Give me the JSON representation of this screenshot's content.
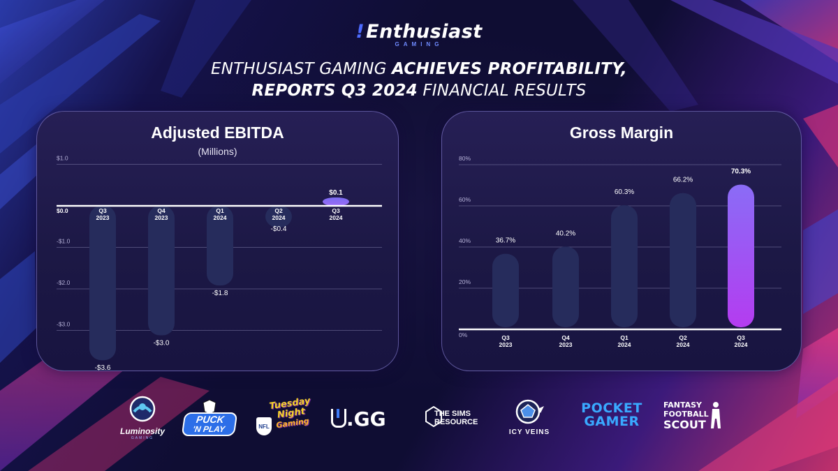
{
  "header": {
    "logo_text": "Enthusiast",
    "logo_sub": "GAMING",
    "headline_line1_a": "ENTHUSIAST GAMING ",
    "headline_line1_b": "ACHIEVES PROFITABILITY,",
    "headline_line2_a": "REPORTS Q3 2024",
    "headline_line2_b": " FINANCIAL RESULTS"
  },
  "chart_data": [
    {
      "type": "bar",
      "title": "Adjusted EBITDA",
      "subtitle": "(Millions)",
      "categories": [
        [
          "Q3",
          "2023"
        ],
        [
          "Q4",
          "2023"
        ],
        [
          "Q1",
          "2024"
        ],
        [
          "Q2",
          "2024"
        ],
        [
          "Q3",
          "2024"
        ]
      ],
      "values": [
        -3.6,
        -3.0,
        -1.8,
        -0.4,
        0.1
      ],
      "value_labels": [
        "-$3.6",
        "-$3.0",
        "-$1.8",
        "-$0.4",
        "$0.1"
      ],
      "y_ticks": [
        1.0,
        0.0,
        -1.0,
        -2.0,
        -3.0
      ],
      "y_tick_labels": [
        "$1.0",
        "$0.0",
        "-$1.0",
        "-$2.0",
        "-$3.0"
      ],
      "ylim": [
        -3.6,
        1.0
      ],
      "grid": true,
      "highlight_index": 4,
      "colors": {
        "bar": "#262c5c",
        "highlight": "#7b6cf2",
        "zero_line": "#ffffff",
        "grid": "#8f8cb8"
      }
    },
    {
      "type": "bar",
      "title": "Gross Margin",
      "categories": [
        [
          "Q3",
          "2023"
        ],
        [
          "Q4",
          "2023"
        ],
        [
          "Q1",
          "2024"
        ],
        [
          "Q2",
          "2024"
        ],
        [
          "Q3",
          "2024"
        ]
      ],
      "values": [
        36.7,
        40.2,
        60.3,
        66.2,
        70.3
      ],
      "value_labels": [
        "36.7%",
        "40.2%",
        "60.3%",
        "66.2%",
        "70.3%"
      ],
      "y_ticks": [
        80,
        60,
        40,
        20,
        0
      ],
      "y_tick_labels": [
        "80%",
        "60%",
        "40%",
        "20%",
        "0%"
      ],
      "ylim": [
        0,
        80
      ],
      "grid": true,
      "highlight_index": 4,
      "colors": {
        "bar": "#262c5c",
        "highlight_top": "#8a6cf6",
        "highlight_bottom": "#b43cf0",
        "zero_line": "#ffffff",
        "grid": "#8f8cb8"
      }
    }
  ],
  "brands": {
    "luminosity": "Luminosity",
    "luminosity_sub": "GAMING",
    "puck_1": "PUCK",
    "puck_2": "'N PLAY",
    "nfl": "NFL",
    "tng_1": "Tuesday",
    "tng_2": "Night",
    "tng_3": "Gaming",
    "ugg_u": "U",
    "ugg_rest": ".GG",
    "sims_1": "THE SIMS",
    "sims_2": "RESOURCE",
    "icy": "ICY VEINS",
    "pocket_1": "POCKET",
    "pocket_2": "GAMER",
    "fantasy_1": "FANTASY",
    "fantasy_2": "FOOTBALL",
    "fantasy_3": "SCOUT"
  }
}
